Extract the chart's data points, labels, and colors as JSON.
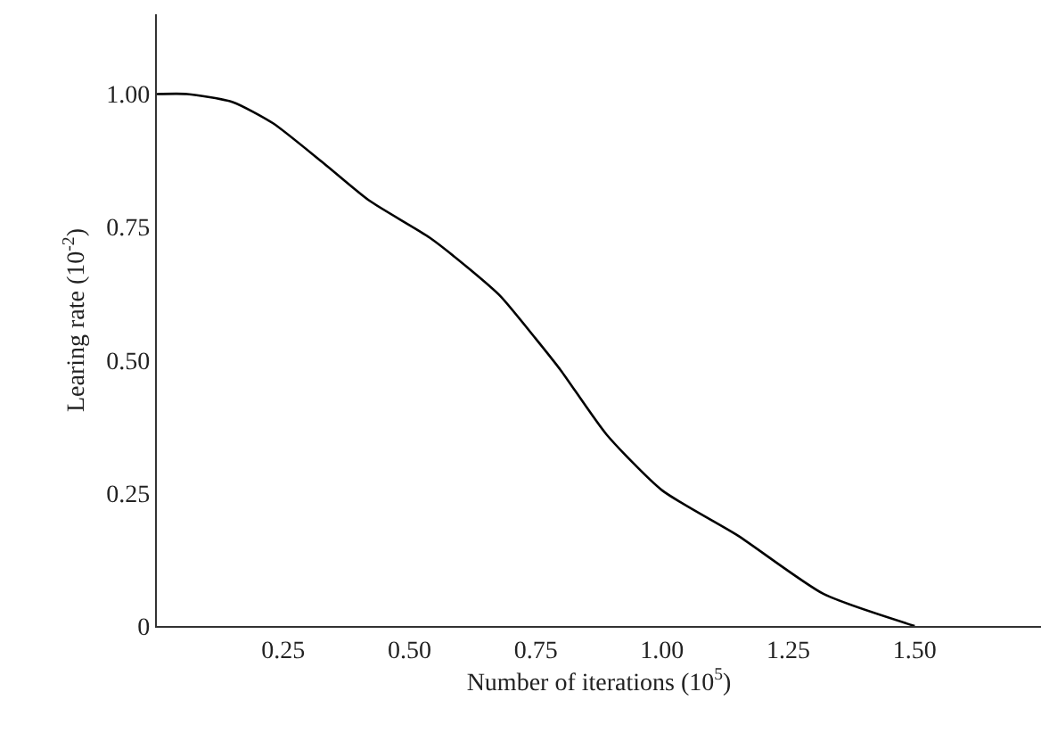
{
  "chart_data": {
    "type": "line",
    "xlabel": "Number of iterations (10$^{5}$)",
    "ylabel": "Learing rate (10$^{-2}$)",
    "x": [
      0,
      0.06,
      0.15,
      0.23,
      0.33,
      0.42,
      0.54,
      0.62,
      0.68,
      0.75,
      0.8,
      0.89,
      1.0,
      1.15,
      1.32,
      1.5
    ],
    "series": [
      {
        "color": "#000000",
        "values": [
          1.0,
          1.0,
          0.985,
          0.945,
          0.87,
          0.8,
          0.73,
          0.67,
          0.62,
          0.54,
          0.48,
          0.36,
          0.255,
          0.17,
          0.06,
          0.0
        ]
      }
    ],
    "xlim": [
      0,
      1.75
    ],
    "ylim": [
      0,
      1.15
    ],
    "xticks": [
      0.25,
      {
        "value": 0.5,
        "label": "0.50"
      },
      0.75,
      {
        "value": 1.0,
        "label": "1.00"
      },
      1.25,
      {
        "value": 1.5,
        "label": "1.50"
      }
    ],
    "yticks": [
      0,
      0.25,
      {
        "value": 0.5,
        "label": "0.50"
      },
      0.75,
      {
        "value": 1.0,
        "label": "1.00"
      }
    ],
    "marker": "none",
    "line_style": "solid"
  }
}
